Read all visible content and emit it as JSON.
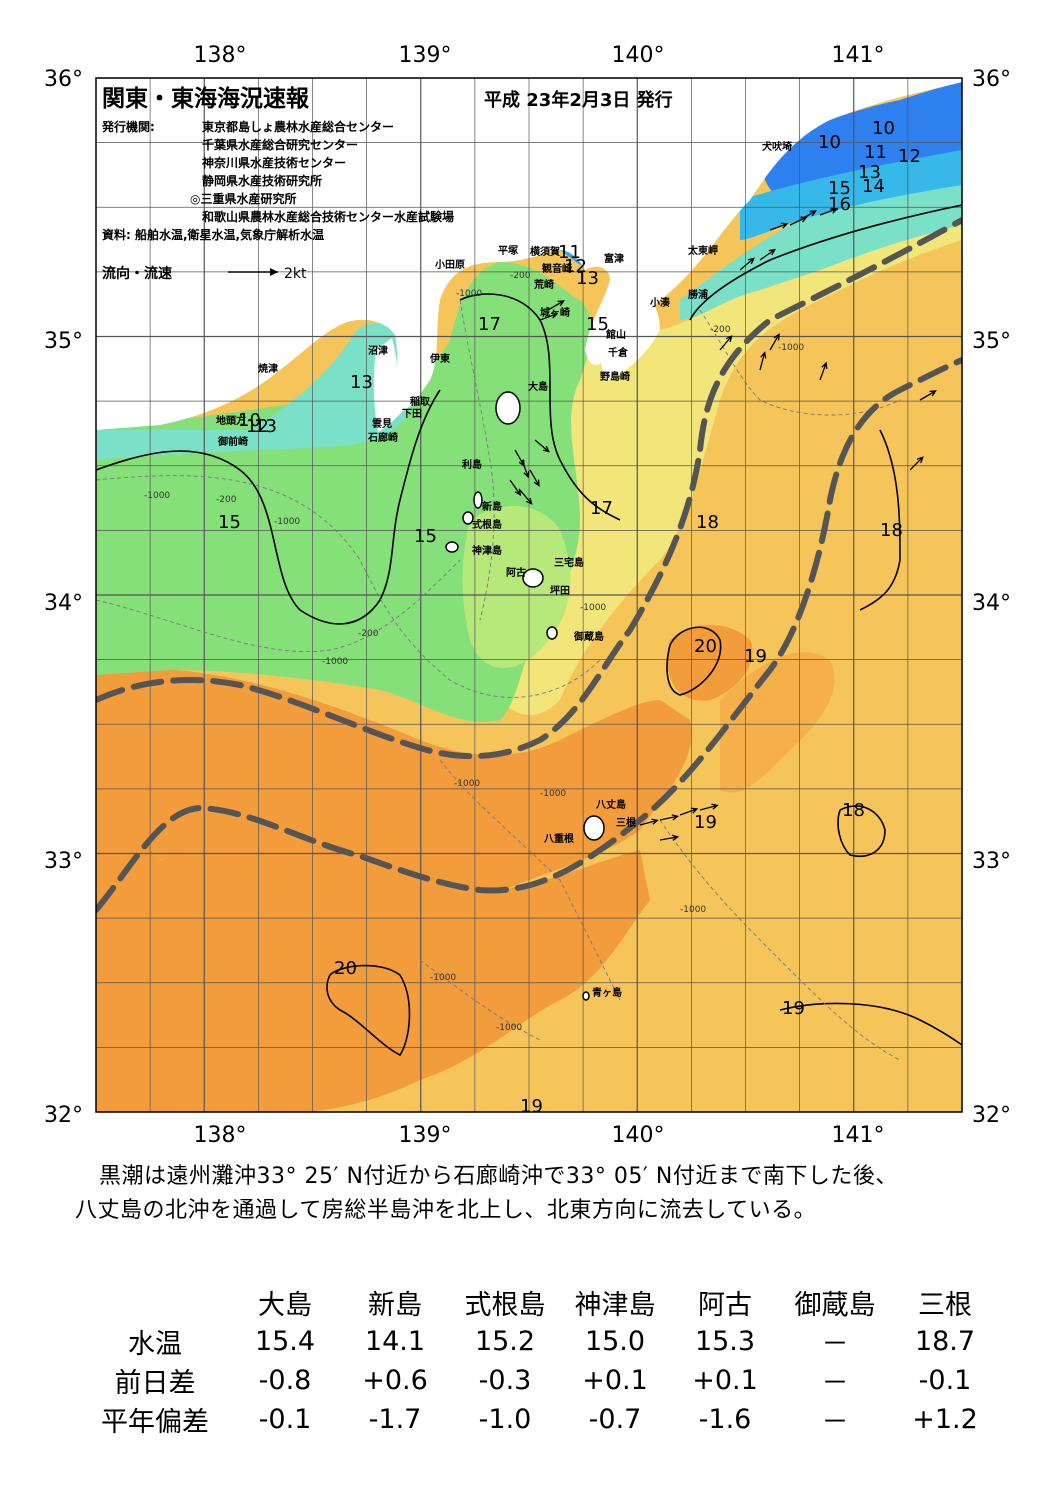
{
  "header": {
    "title": "関東・東海海況速報",
    "date": "平成 23年2月3日 発行",
    "issuer_label": "発行機関:",
    "issuers": [
      "東京都島しょ農林水産総合センター",
      "千葉県水産総合研究センター",
      "神奈川県水産技術センター",
      "静岡県水産技術研究所",
      "◎三重県水産研究所",
      "和歌山県農林水産総合技術センター水産試験場"
    ],
    "sources": "資料: 船舶水温,衛星水温,気象庁解析水温",
    "flow_legend": "流向・流速",
    "flow_scale": "2kt"
  },
  "axes": {
    "lon_labels": [
      "138°",
      "139°",
      "140°",
      "141°"
    ],
    "lat_labels": [
      "36°",
      "35°",
      "34°",
      "33°",
      "32°"
    ],
    "lon_values": [
      138,
      139,
      140,
      141
    ],
    "lat_values": [
      36,
      35,
      34,
      33,
      32
    ],
    "lon_range": [
      137.5,
      141.5
    ],
    "lat_range": [
      32,
      36
    ]
  },
  "place_names": {
    "inubozaki": "犬吠埼",
    "taitomisaki": "太東岬",
    "katsuura": "勝浦",
    "kominato": "小湊",
    "futtsu": "富津",
    "kannonzaki": "観音崎",
    "yokosuka": "横須賀",
    "hiratsuka": "平塚",
    "odawara": "小田原",
    "araizaki": "荒崎",
    "jogashima": "城ヶ崎",
    "tateyama": "館山",
    "chikura": "千倉",
    "nojimazaki": "野島崎",
    "numazu": "沼津",
    "ito": "伊東",
    "yaizu": "焼津",
    "inatori": "稲取",
    "shimoda": "下田",
    "kumomi": "雲見",
    "irozaki": "石廊崎",
    "jitozaki": "地頭方",
    "omaezaki": "御前崎",
    "oshima": "大島",
    "toshima": "利島",
    "niijima": "新島",
    "shikinejima": "式根島",
    "kozushima": "神津島",
    "miyakejima": "三宅島",
    "ako": "阿古",
    "tsubota": "坪田",
    "mikurajima": "御蔵島",
    "hachijojima": "八丈島",
    "yaene": "八重根",
    "mitsune": "三根",
    "aogashima": "青ヶ島"
  },
  "contour_labels": [
    {
      "value": "10"
    },
    {
      "value": "10"
    },
    {
      "value": "11"
    },
    {
      "value": "12"
    },
    {
      "value": "13"
    },
    {
      "value": "14"
    },
    {
      "value": "15"
    },
    {
      "value": "16"
    },
    {
      "value": "11"
    },
    {
      "value": "12"
    },
    {
      "value": "13"
    },
    {
      "value": "15"
    },
    {
      "value": "17"
    },
    {
      "value": "13"
    },
    {
      "value": "10"
    },
    {
      "value": "12"
    },
    {
      "value": "13"
    },
    {
      "value": "15"
    },
    {
      "value": "15"
    },
    {
      "value": "17"
    },
    {
      "value": "18"
    },
    {
      "value": "18"
    },
    {
      "value": "20"
    },
    {
      "value": "19"
    },
    {
      "value": "19"
    },
    {
      "value": "18"
    },
    {
      "value": "20"
    },
    {
      "value": "19"
    },
    {
      "value": "19"
    }
  ],
  "depth_labels": [
    "-200",
    "-1000"
  ],
  "summary": {
    "line1": "黒潮は遠州灘沖33° 25′ N付近から石廊崎沖で33° 05′ N付近まで南下した後、",
    "line2": "八丈島の北沖を通過して房総半島沖を北上し、北東方向に流去している。"
  },
  "table": {
    "columns": [
      "大島",
      "新島",
      "式根島",
      "神津島",
      "阿古",
      "御蔵島",
      "三根"
    ],
    "rows": [
      {
        "label": "水温",
        "values": [
          "15.4",
          "14.1",
          "15.2",
          "15.0",
          "15.3",
          "－",
          "18.7"
        ]
      },
      {
        "label": "前日差",
        "values": [
          "-0.8",
          "+0.6",
          "-0.3",
          "+0.1",
          "+0.1",
          "－",
          "-0.1"
        ]
      },
      {
        "label": "平年偏差",
        "values": [
          "-0.1",
          "-1.7",
          "-1.0",
          "-0.7",
          "-1.6",
          "－",
          "+1.2"
        ]
      }
    ]
  },
  "colors": {
    "cold": "#2f80ef",
    "cool": "#7be0c8",
    "green": "#86e07a",
    "yellow": "#f2e57a",
    "warm": "#f6c55a",
    "hot": "#f39c3c",
    "kuroshio_axis": "#555555"
  }
}
